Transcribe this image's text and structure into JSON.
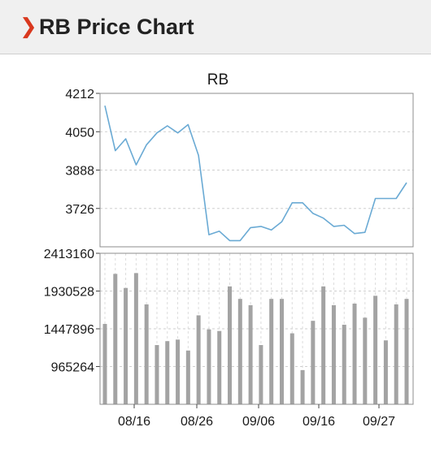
{
  "header": {
    "title": "RB Price Chart",
    "icon": "chevron-right-icon",
    "accent_color": "#d9381e"
  },
  "chart_data": [
    {
      "type": "line",
      "title": "RB",
      "ylim": [
        3564,
        4212
      ],
      "yticks": [
        "4212",
        "4050",
        "3888",
        "3726"
      ],
      "grid": true,
      "color": "#6aaad4",
      "values": [
        4160,
        3970,
        4020,
        3910,
        3995,
        4045,
        4075,
        4045,
        4080,
        3950,
        3615,
        3630,
        3590,
        3590,
        3645,
        3650,
        3635,
        3670,
        3750,
        3750,
        3705,
        3685,
        3650,
        3655,
        3620,
        3625,
        3768,
        3768,
        3768,
        3835
      ]
    },
    {
      "type": "bar",
      "ylim": [
        482632,
        2413160
      ],
      "yticks": [
        "2413160",
        "1930528",
        "1447896",
        "965264"
      ],
      "grid": true,
      "color": "#a3a3a3",
      "xticks": [
        "08/16",
        "08/26",
        "09/06",
        "09/16",
        "09/27"
      ],
      "values": [
        1510000,
        2150000,
        1970000,
        2160000,
        1760000,
        1240000,
        1290000,
        1310000,
        1170000,
        1620000,
        1440000,
        1420000,
        1990000,
        1830000,
        1750000,
        1240000,
        1830000,
        1830000,
        1390000,
        920000,
        1550000,
        1990000,
        1750000,
        1500000,
        1770000,
        1590000,
        1870000,
        1300000,
        1760000,
        1830000
      ]
    }
  ]
}
